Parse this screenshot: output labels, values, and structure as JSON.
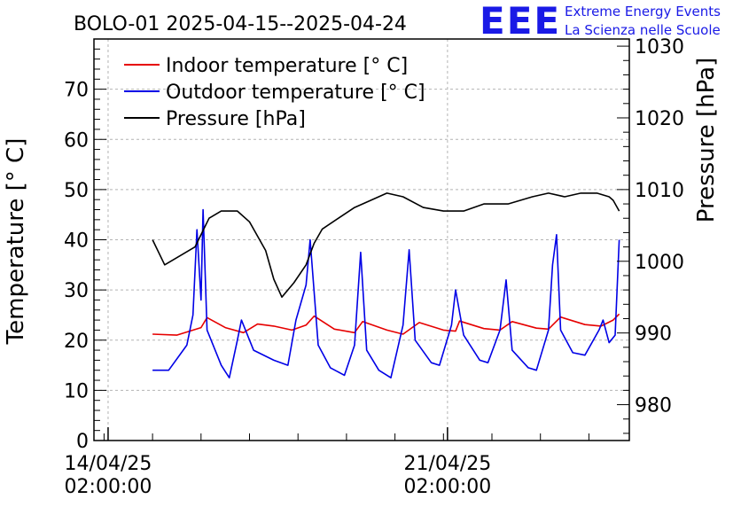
{
  "chart_data": {
    "type": "line",
    "title": "BOLO-01 2025-04-15--2025-04-24",
    "ylabel": "Temperature [° C]",
    "y2label": "Pressure [hPa]",
    "x_unit": "days",
    "xlim": [
      "2025-04-13 19:00",
      "2025-04-24 20:00"
    ],
    "ylim": [
      0,
      80
    ],
    "y2lim": [
      975,
      1031
    ],
    "y_ticks": [
      0,
      10,
      20,
      30,
      40,
      50,
      60,
      70
    ],
    "y2_ticks": [
      980,
      990,
      1000,
      1010,
      1020,
      1030
    ],
    "x_ticks": [
      {
        "value": "2025-04-14 02:00",
        "date": "14/04/25",
        "time": "02:00:00"
      },
      {
        "value": "2025-04-21 02:00",
        "date": "21/04/25",
        "time": "02:00:00"
      }
    ],
    "grid": true,
    "legend_position": "top-left",
    "series": [
      {
        "name": "Indoor temperature [° C]",
        "color": "#e60000",
        "axis": "left",
        "points": [
          [
            "2025-04-15 00:00",
            21.2
          ],
          [
            "2025-04-15 12:00",
            21.0
          ],
          [
            "2025-04-16 00:00",
            22.5
          ],
          [
            "2025-04-16 03:00",
            24.5
          ],
          [
            "2025-04-16 12:00",
            22.5
          ],
          [
            "2025-04-16 21:00",
            21.5
          ],
          [
            "2025-04-17 04:00",
            23.2
          ],
          [
            "2025-04-17 12:00",
            22.8
          ],
          [
            "2025-04-17 21:00",
            22.0
          ],
          [
            "2025-04-18 04:00",
            23.0
          ],
          [
            "2025-04-18 08:00",
            24.8
          ],
          [
            "2025-04-18 18:00",
            22.2
          ],
          [
            "2025-04-19 04:00",
            21.5
          ],
          [
            "2025-04-19 08:00",
            23.7
          ],
          [
            "2025-04-19 20:00",
            22.0
          ],
          [
            "2025-04-20 04:00",
            21.2
          ],
          [
            "2025-04-20 12:00",
            23.5
          ],
          [
            "2025-04-21 00:00",
            22.0
          ],
          [
            "2025-04-21 06:00",
            21.8
          ],
          [
            "2025-04-21 08:00",
            23.8
          ],
          [
            "2025-04-21 20:00",
            22.3
          ],
          [
            "2025-04-22 04:00",
            22.0
          ],
          [
            "2025-04-22 10:00",
            23.7
          ],
          [
            "2025-04-22 22:00",
            22.4
          ],
          [
            "2025-04-23 04:00",
            22.2
          ],
          [
            "2025-04-23 10:00",
            24.6
          ],
          [
            "2025-04-23 22:00",
            23.1
          ],
          [
            "2025-04-24 06:00",
            22.8
          ],
          [
            "2025-04-24 12:00",
            24.0
          ],
          [
            "2025-04-24 15:00",
            25.2
          ]
        ]
      },
      {
        "name": "Outdoor temperature [° C]",
        "color": "#0000e6",
        "axis": "left",
        "points": [
          [
            "2025-04-15 00:00",
            14.0
          ],
          [
            "2025-04-15 08:00",
            14.0
          ],
          [
            "2025-04-15 17:00",
            19.0
          ],
          [
            "2025-04-15 20:00",
            25.0
          ],
          [
            "2025-04-15 22:00",
            42.0
          ],
          [
            "2025-04-16 00:00",
            28.0
          ],
          [
            "2025-04-16 01:00",
            46.0
          ],
          [
            "2025-04-16 03:00",
            22.0
          ],
          [
            "2025-04-16 10:00",
            15.0
          ],
          [
            "2025-04-16 14:00",
            12.5
          ],
          [
            "2025-04-16 18:00",
            20.0
          ],
          [
            "2025-04-16 20:00",
            24.0
          ],
          [
            "2025-04-17 02:00",
            18.0
          ],
          [
            "2025-04-17 12:00",
            16.0
          ],
          [
            "2025-04-17 19:00",
            15.0
          ],
          [
            "2025-04-17 23:00",
            24.0
          ],
          [
            "2025-04-18 04:00",
            31.0
          ],
          [
            "2025-04-18 06:00",
            40.0
          ],
          [
            "2025-04-18 10:00",
            19.0
          ],
          [
            "2025-04-18 16:00",
            14.5
          ],
          [
            "2025-04-18 23:00",
            13.0
          ],
          [
            "2025-04-19 04:00",
            19.0
          ],
          [
            "2025-04-19 07:00",
            37.5
          ],
          [
            "2025-04-19 10:00",
            18.0
          ],
          [
            "2025-04-19 16:00",
            14.0
          ],
          [
            "2025-04-19 22:00",
            12.5
          ],
          [
            "2025-04-20 04:00",
            23.0
          ],
          [
            "2025-04-20 07:00",
            38.0
          ],
          [
            "2025-04-20 10:00",
            20.0
          ],
          [
            "2025-04-20 18:00",
            15.5
          ],
          [
            "2025-04-20 22:00",
            15.0
          ],
          [
            "2025-04-21 04:00",
            23.0
          ],
          [
            "2025-04-21 06:00",
            30.0
          ],
          [
            "2025-04-21 10:00",
            21.0
          ],
          [
            "2025-04-21 18:00",
            16.0
          ],
          [
            "2025-04-21 22:00",
            15.5
          ],
          [
            "2025-04-22 04:00",
            22.0
          ],
          [
            "2025-04-22 07:00",
            32.0
          ],
          [
            "2025-04-22 10:00",
            18.0
          ],
          [
            "2025-04-22 18:00",
            14.5
          ],
          [
            "2025-04-22 22:00",
            14.0
          ],
          [
            "2025-04-23 04:00",
            22.0
          ],
          [
            "2025-04-23 06:00",
            35.0
          ],
          [
            "2025-04-23 08:00",
            41.0
          ],
          [
            "2025-04-23 10:00",
            22.0
          ],
          [
            "2025-04-23 16:00",
            17.5
          ],
          [
            "2025-04-23 22:00",
            17.0
          ],
          [
            "2025-04-24 05:00",
            22.0
          ],
          [
            "2025-04-24 07:00",
            24.0
          ],
          [
            "2025-04-24 10:00",
            19.5
          ],
          [
            "2025-04-24 13:00",
            21.0
          ],
          [
            "2025-04-24 15:00",
            40.0
          ]
        ]
      },
      {
        "name": "Pressure [hPa]",
        "color": "#000000",
        "axis": "right",
        "points": [
          [
            "2025-04-15 00:00",
            1003.0
          ],
          [
            "2025-04-15 06:00",
            999.5
          ],
          [
            "2025-04-15 15:00",
            1001.0
          ],
          [
            "2025-04-15 21:00",
            1002.0
          ],
          [
            "2025-04-16 04:00",
            1006.0
          ],
          [
            "2025-04-16 10:00",
            1007.0
          ],
          [
            "2025-04-16 18:00",
            1007.0
          ],
          [
            "2025-04-17 00:00",
            1005.5
          ],
          [
            "2025-04-17 08:00",
            1001.5
          ],
          [
            "2025-04-17 12:00",
            997.5
          ],
          [
            "2025-04-17 16:00",
            995.0
          ],
          [
            "2025-04-17 22:00",
            997.0
          ],
          [
            "2025-04-18 04:00",
            999.5
          ],
          [
            "2025-04-18 08:00",
            1002.5
          ],
          [
            "2025-04-18 12:00",
            1004.5
          ],
          [
            "2025-04-18 20:00",
            1006.0
          ],
          [
            "2025-04-19 04:00",
            1007.5
          ],
          [
            "2025-04-19 12:00",
            1008.5
          ],
          [
            "2025-04-19 20:00",
            1009.5
          ],
          [
            "2025-04-20 04:00",
            1009.0
          ],
          [
            "2025-04-20 14:00",
            1007.5
          ],
          [
            "2025-04-21 00:00",
            1007.0
          ],
          [
            "2025-04-21 10:00",
            1007.0
          ],
          [
            "2025-04-21 20:00",
            1008.0
          ],
          [
            "2025-04-22 08:00",
            1008.0
          ],
          [
            "2025-04-22 20:00",
            1009.0
          ],
          [
            "2025-04-23 04:00",
            1009.5
          ],
          [
            "2025-04-23 12:00",
            1009.0
          ],
          [
            "2025-04-23 20:00",
            1009.5
          ],
          [
            "2025-04-24 04:00",
            1009.5
          ],
          [
            "2025-04-24 10:00",
            1009.0
          ],
          [
            "2025-04-24 12:00",
            1008.5
          ],
          [
            "2025-04-24 15:00",
            1007.0
          ]
        ]
      }
    ]
  },
  "logo": {
    "mark": "EEE",
    "line1": "Extreme Energy Events",
    "line2": "La Scienza nelle Scuole"
  }
}
